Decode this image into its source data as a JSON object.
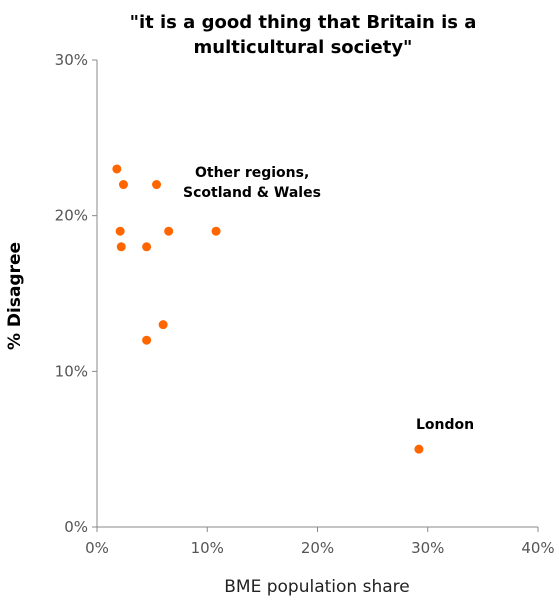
{
  "chart_data": {
    "type": "scatter",
    "title": "\"it is a good thing that Britain is a multicultural society\"",
    "title_lines": [
      "\"it is a good thing that Britain is a",
      "multicultural society\""
    ],
    "xlabel": "BME population share",
    "ylabel": "% Disagree",
    "xlim": [
      0,
      40
    ],
    "ylim": [
      0,
      30
    ],
    "x_ticks": [
      0,
      10,
      20,
      30,
      40
    ],
    "x_tick_labels": [
      "0%",
      "10%",
      "20%",
      "30%",
      "40%"
    ],
    "y_ticks": [
      0,
      10,
      20,
      30
    ],
    "y_tick_labels": [
      "0%",
      "10%",
      "20%",
      "30%"
    ],
    "grid": false,
    "marker_color": "#ff6600",
    "series": [
      {
        "points": [
          {
            "x": 1.8,
            "y": 23
          },
          {
            "x": 2.4,
            "y": 22
          },
          {
            "x": 5.4,
            "y": 22
          },
          {
            "x": 2.1,
            "y": 19
          },
          {
            "x": 6.5,
            "y": 19
          },
          {
            "x": 10.8,
            "y": 19
          },
          {
            "x": 2.2,
            "y": 18
          },
          {
            "x": 4.5,
            "y": 18
          },
          {
            "x": 6.0,
            "y": 13
          },
          {
            "x": 4.5,
            "y": 12
          },
          {
            "x": 29.2,
            "y": 5
          }
        ]
      }
    ],
    "annotations": [
      {
        "lines": [
          "Other regions,",
          "Scotland & Wales"
        ]
      },
      {
        "lines": [
          "London"
        ]
      }
    ]
  }
}
